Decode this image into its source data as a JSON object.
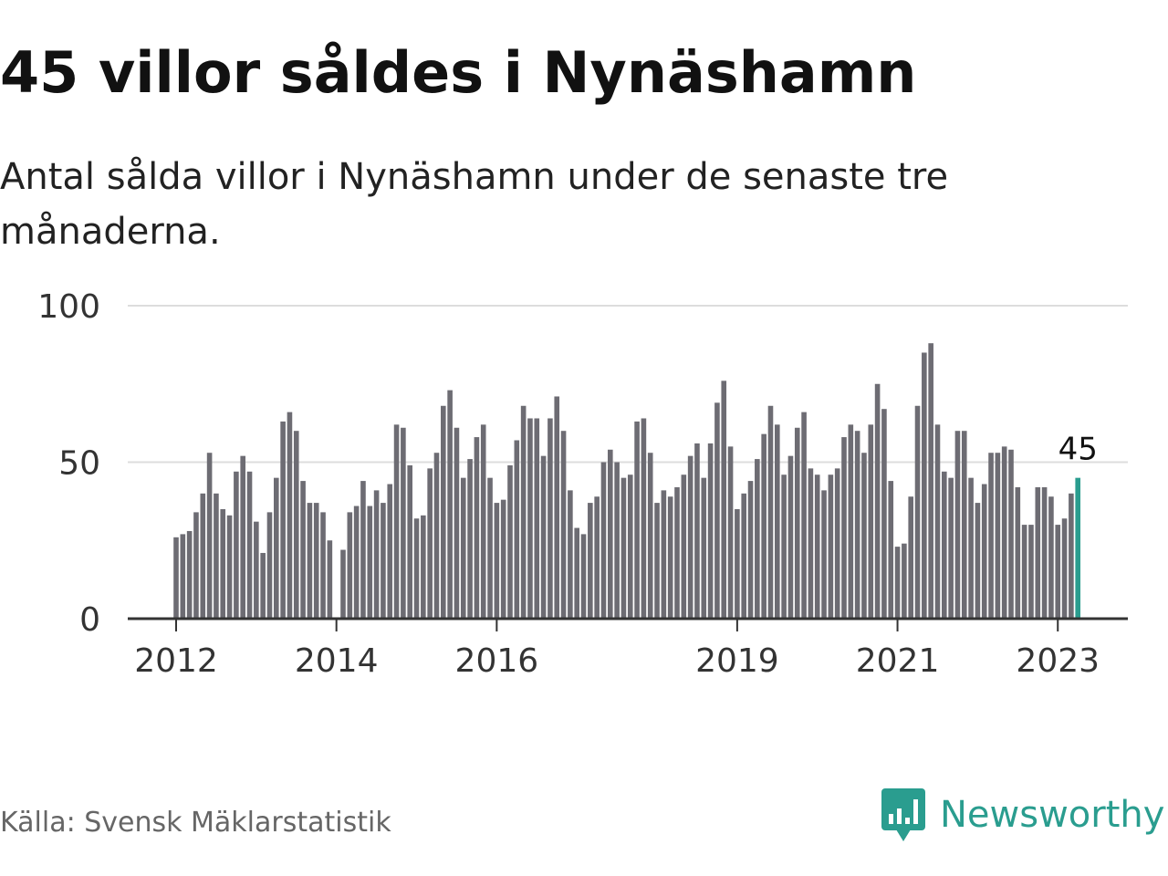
{
  "header": {
    "title": "45 villor såldes i Nynäshamn",
    "subtitle": "Antal sålda villor i Nynäshamn under de senaste tre månaderna."
  },
  "footer": {
    "source": "Källa: Svensk Mäklarstatistik",
    "brand": "Newsworthy"
  },
  "colors": {
    "bar": "#6d6c73",
    "highlight": "#2a9d8f",
    "grid": "#dddddd",
    "axis": "#333333",
    "brand": "#2a9d8f"
  },
  "icons": {
    "logo": "newsworthy-bar-chart-icon"
  },
  "chart_data": {
    "type": "bar",
    "title": "",
    "xlabel": "",
    "ylabel": "",
    "ylim": [
      0,
      100
    ],
    "yticks": [
      0,
      50,
      100
    ],
    "grid": true,
    "legend": "none",
    "x_start": "2012-01",
    "x_ticks": [
      {
        "label": "2012",
        "index": 0
      },
      {
        "label": "2014",
        "index": 24
      },
      {
        "label": "2016",
        "index": 48
      },
      {
        "label": "2019",
        "index": 84
      },
      {
        "label": "2021",
        "index": 108
      },
      {
        "label": "2023",
        "index": 132
      }
    ],
    "highlight_index": 135,
    "highlight_label": "45",
    "values": [
      26,
      27,
      28,
      34,
      40,
      53,
      40,
      35,
      33,
      47,
      52,
      47,
      31,
      21,
      34,
      45,
      63,
      66,
      60,
      44,
      37,
      37,
      34,
      25,
      0,
      22,
      34,
      36,
      44,
      36,
      41,
      37,
      43,
      62,
      61,
      49,
      32,
      33,
      48,
      53,
      68,
      73,
      61,
      45,
      51,
      58,
      62,
      45,
      37,
      38,
      49,
      57,
      68,
      64,
      64,
      52,
      64,
      71,
      60,
      41,
      29,
      27,
      37,
      39,
      50,
      54,
      50,
      45,
      46,
      63,
      64,
      53,
      37,
      41,
      39,
      42,
      46,
      52,
      56,
      45,
      56,
      69,
      76,
      55,
      35,
      40,
      44,
      51,
      59,
      68,
      62,
      46,
      52,
      61,
      66,
      48,
      46,
      41,
      46,
      48,
      58,
      62,
      60,
      53,
      62,
      75,
      67,
      44,
      23,
      24,
      39,
      68,
      85,
      88,
      62,
      47,
      45,
      60,
      60,
      45,
      37,
      43,
      53,
      53,
      55,
      54,
      42,
      30,
      30,
      42,
      42,
      39,
      30,
      32,
      40,
      45
    ]
  }
}
